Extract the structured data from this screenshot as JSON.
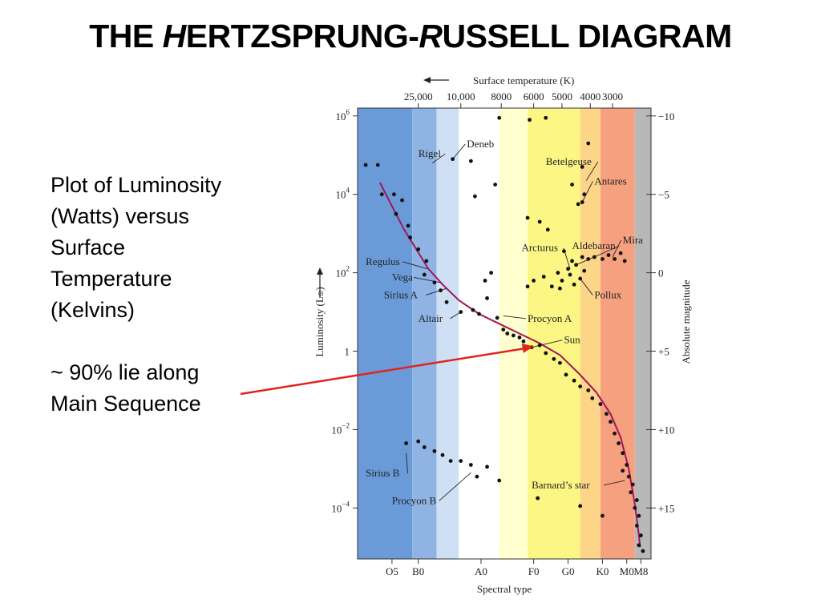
{
  "slide": {
    "title_parts": [
      "THE ",
      "H",
      "ERTZSPRUNG-",
      "R",
      "USSELL DIAGRAM"
    ],
    "description_lines": [
      "Plot of Luminosity",
      "(Watts) versus",
      "Surface",
      "Temperature",
      "(Kelvins)"
    ],
    "note_lines": [
      "~ 90% lie along",
      "Main Sequence"
    ]
  },
  "chart_data": {
    "type": "scatter",
    "xlabel": "Spectral type",
    "top_xlabel": "Surface temperature (K)",
    "ylabel": "Luminosity (L",
    "ylabel_symbol": "⊙",
    "ylabel_close": ")",
    "right_ylabel": "Absolute magnitude",
    "y_scale": "log",
    "ylim_log10": [
      -5.3,
      6.2
    ],
    "xlim_index": [
      0,
      7.25
    ],
    "spectral_ticks": [
      {
        "label": "O5",
        "pos": 0.85
      },
      {
        "label": "B0",
        "pos": 1.5
      },
      {
        "label": "A0",
        "pos": 3.05
      },
      {
        "label": "F0",
        "pos": 4.35
      },
      {
        "label": "G0",
        "pos": 5.2
      },
      {
        "label": "K0",
        "pos": 6.05
      },
      {
        "label": "M0",
        "pos": 6.65
      },
      {
        "label": "M8",
        "pos": 7.0
      }
    ],
    "temperature_ticks": [
      {
        "label": "25,000",
        "pos": 1.5
      },
      {
        "label": "10,000",
        "pos": 2.55
      },
      {
        "label": "8000",
        "pos": 3.55
      },
      {
        "label": "6000",
        "pos": 4.35
      },
      {
        "label": "5000",
        "pos": 5.05
      },
      {
        "label": "4000",
        "pos": 5.75
      },
      {
        "label": "3000",
        "pos": 6.3
      }
    ],
    "luminosity_ticks": [
      {
        "value": 6,
        "base": "10",
        "exp": "6"
      },
      {
        "value": 4,
        "base": "10",
        "exp": "4"
      },
      {
        "value": 2,
        "base": "10",
        "exp": "2"
      },
      {
        "value": 0,
        "base": "1",
        "exp": ""
      },
      {
        "value": -2,
        "base": "10",
        "exp": "−2"
      },
      {
        "value": -4,
        "base": "10",
        "exp": "−4"
      }
    ],
    "magnitude_ticks": [
      {
        "value": 6,
        "label": "−10"
      },
      {
        "value": 4,
        "label": "−5"
      },
      {
        "value": 2,
        "label": "0"
      },
      {
        "value": 0,
        "label": "+5"
      },
      {
        "value": -2,
        "label": "+10"
      },
      {
        "value": -4,
        "label": "+15"
      }
    ],
    "color_bands": [
      {
        "from": 0,
        "to": 1.35,
        "color": "#6a9bd8"
      },
      {
        "from": 1.35,
        "to": 1.95,
        "color": "#8fb4e4"
      },
      {
        "from": 1.95,
        "to": 2.5,
        "color": "#cfe0f5"
      },
      {
        "from": 2.5,
        "to": 3.5,
        "color": "#ffffff"
      },
      {
        "from": 3.5,
        "to": 4.2,
        "color": "#ffffd0"
      },
      {
        "from": 4.2,
        "to": 5.5,
        "color": "#fcf784"
      },
      {
        "from": 5.5,
        "to": 6.0,
        "color": "#fcd588"
      },
      {
        "from": 6.0,
        "to": 6.85,
        "color": "#f5a07e"
      },
      {
        "from": 6.85,
        "to": 7.25,
        "color": "#b8b8b8"
      }
    ],
    "main_sequence_curve": [
      {
        "x": 0.55,
        "y": 4.3
      },
      {
        "x": 0.85,
        "y": 3.7
      },
      {
        "x": 1.15,
        "y": 3.1
      },
      {
        "x": 1.45,
        "y": 2.6
      },
      {
        "x": 1.75,
        "y": 2.1
      },
      {
        "x": 2.1,
        "y": 1.7
      },
      {
        "x": 2.5,
        "y": 1.3
      },
      {
        "x": 3.0,
        "y": 0.95
      },
      {
        "x": 3.5,
        "y": 0.7
      },
      {
        "x": 4.0,
        "y": 0.45
      },
      {
        "x": 4.5,
        "y": 0.2
      },
      {
        "x": 5.0,
        "y": -0.1
      },
      {
        "x": 5.45,
        "y": -0.55
      },
      {
        "x": 5.9,
        "y": -1.05
      },
      {
        "x": 6.25,
        "y": -1.6
      },
      {
        "x": 6.5,
        "y": -2.2
      },
      {
        "x": 6.7,
        "y": -3.0
      },
      {
        "x": 6.85,
        "y": -3.9
      },
      {
        "x": 6.95,
        "y": -4.7
      },
      {
        "x": 6.98,
        "y": -5.0
      }
    ],
    "points": [
      {
        "x": 0.2,
        "y": 4.75
      },
      {
        "x": 0.5,
        "y": 4.75
      },
      {
        "x": 0.6,
        "y": 4.0
      },
      {
        "x": 0.9,
        "y": 4.0
      },
      {
        "x": 1.1,
        "y": 3.85
      },
      {
        "x": 0.95,
        "y": 3.5
      },
      {
        "x": 1.25,
        "y": 3.2
      },
      {
        "x": 1.3,
        "y": 2.9
      },
      {
        "x": 1.5,
        "y": 2.6
      },
      {
        "x": 1.7,
        "y": 2.3
      },
      {
        "x": 1.65,
        "y": 1.95
      },
      {
        "x": 1.9,
        "y": 1.75
      },
      {
        "x": 2.05,
        "y": 1.55
      },
      {
        "x": 2.2,
        "y": 1.25
      },
      {
        "x": 2.55,
        "y": 1.0
      },
      {
        "x": 2.85,
        "y": 1.05
      },
      {
        "x": 3.0,
        "y": 0.95
      },
      {
        "x": 3.2,
        "y": 1.35
      },
      {
        "x": 3.15,
        "y": 1.8
      },
      {
        "x": 3.3,
        "y": 2.0
      },
      {
        "x": 3.45,
        "y": 0.85
      },
      {
        "x": 3.6,
        "y": 0.55
      },
      {
        "x": 3.7,
        "y": 0.45
      },
      {
        "x": 3.85,
        "y": 0.4
      },
      {
        "x": 4.0,
        "y": 0.35
      },
      {
        "x": 4.1,
        "y": 0.25
      },
      {
        "x": 4.3,
        "y": 0.1
      },
      {
        "x": 4.5,
        "y": 0.15
      },
      {
        "x": 4.65,
        "y": -0.05
      },
      {
        "x": 4.85,
        "y": -0.2
      },
      {
        "x": 5.0,
        "y": -0.3
      },
      {
        "x": 5.15,
        "y": -0.6
      },
      {
        "x": 5.35,
        "y": -0.75
      },
      {
        "x": 5.5,
        "y": -0.9
      },
      {
        "x": 5.7,
        "y": -1.0
      },
      {
        "x": 5.8,
        "y": -1.2
      },
      {
        "x": 6.0,
        "y": -1.35
      },
      {
        "x": 6.15,
        "y": -1.6
      },
      {
        "x": 6.25,
        "y": -1.8
      },
      {
        "x": 6.35,
        "y": -2.1
      },
      {
        "x": 6.45,
        "y": -2.35
      },
      {
        "x": 6.55,
        "y": -2.6
      },
      {
        "x": 6.65,
        "y": -2.9
      },
      {
        "x": 6.55,
        "y": -3.05
      },
      {
        "x": 6.7,
        "y": -3.2
      },
      {
        "x": 6.8,
        "y": -3.4
      },
      {
        "x": 6.75,
        "y": -3.6
      },
      {
        "x": 6.9,
        "y": -3.8
      },
      {
        "x": 6.85,
        "y": -4.0
      },
      {
        "x": 6.95,
        "y": -4.2
      },
      {
        "x": 6.9,
        "y": -4.45
      },
      {
        "x": 7.0,
        "y": -4.7
      },
      {
        "x": 6.95,
        "y": -4.95
      },
      {
        "x": 7.05,
        "y": -5.1
      },
      {
        "x": 3.5,
        "y": 5.95
      },
      {
        "x": 4.25,
        "y": 5.9
      },
      {
        "x": 4.65,
        "y": 5.95
      },
      {
        "x": 5.7,
        "y": 5.3
      },
      {
        "x": 2.35,
        "y": 4.9
      },
      {
        "x": 2.8,
        "y": 4.85
      },
      {
        "x": 2.9,
        "y": 3.95
      },
      {
        "x": 3.4,
        "y": 4.25
      },
      {
        "x": 5.55,
        "y": 4.7
      },
      {
        "x": 5.3,
        "y": 4.25
      },
      {
        "x": 5.45,
        "y": 3.75
      },
      {
        "x": 4.2,
        "y": 3.4
      },
      {
        "x": 4.5,
        "y": 3.3
      },
      {
        "x": 4.7,
        "y": 3.1
      },
      {
        "x": 5.6,
        "y": 4.0
      },
      {
        "x": 5.55,
        "y": 3.8
      },
      {
        "x": 5.1,
        "y": 2.55
      },
      {
        "x": 5.3,
        "y": 2.3
      },
      {
        "x": 5.2,
        "y": 2.1
      },
      {
        "x": 5.4,
        "y": 2.2
      },
      {
        "x": 5.55,
        "y": 2.4
      },
      {
        "x": 5.7,
        "y": 2.35
      },
      {
        "x": 5.85,
        "y": 2.4
      },
      {
        "x": 6.05,
        "y": 2.35
      },
      {
        "x": 6.2,
        "y": 2.45
      },
      {
        "x": 6.35,
        "y": 2.35
      },
      {
        "x": 6.6,
        "y": 2.3
      },
      {
        "x": 6.5,
        "y": 2.5
      },
      {
        "x": 4.35,
        "y": 1.8
      },
      {
        "x": 4.6,
        "y": 1.9
      },
      {
        "x": 4.8,
        "y": 1.65
      },
      {
        "x": 4.95,
        "y": 2.0
      },
      {
        "x": 5.05,
        "y": 1.8
      },
      {
        "x": 5.25,
        "y": 1.95
      },
      {
        "x": 5.35,
        "y": 1.7
      },
      {
        "x": 5.5,
        "y": 1.85
      },
      {
        "x": 5.6,
        "y": 2.05
      },
      {
        "x": 4.2,
        "y": 1.65
      },
      {
        "x": 5.0,
        "y": 1.6
      },
      {
        "x": 1.2,
        "y": -2.35
      },
      {
        "x": 1.5,
        "y": -2.3
      },
      {
        "x": 1.65,
        "y": -2.45
      },
      {
        "x": 1.9,
        "y": -2.55
      },
      {
        "x": 2.1,
        "y": -2.65
      },
      {
        "x": 2.3,
        "y": -2.8
      },
      {
        "x": 2.55,
        "y": -2.8
      },
      {
        "x": 2.8,
        "y": -2.9
      },
      {
        "x": 3.2,
        "y": -2.95
      },
      {
        "x": 2.95,
        "y": -3.2
      },
      {
        "x": 3.5,
        "y": -3.3
      },
      {
        "x": 4.45,
        "y": -3.75
      },
      {
        "x": 5.5,
        "y": -3.95
      },
      {
        "x": 6.05,
        "y": -4.2
      }
    ],
    "annotations": [
      {
        "text": "Deneb",
        "lx": 2.7,
        "ly": 5.2,
        "px": 2.35,
        "py": 4.9,
        "anchor": "start"
      },
      {
        "text": "Rigel",
        "lx": 1.5,
        "ly": 4.95,
        "px": 1.85,
        "py": 4.8,
        "anchor": "start"
      },
      {
        "text": "Betelgeuse",
        "lx": 4.65,
        "ly": 4.75,
        "px": 5.65,
        "py": 4.35,
        "anchor": "start"
      },
      {
        "text": "Antares",
        "lx": 5.85,
        "ly": 4.25,
        "px": 5.55,
        "py": 3.8,
        "anchor": "start"
      },
      {
        "text": "Regulus",
        "lx": 0.2,
        "ly": 2.2,
        "px": 1.72,
        "py": 2.1,
        "anchor": "start"
      },
      {
        "text": "Vega",
        "lx": 0.85,
        "ly": 1.8,
        "px": 2.05,
        "py": 1.75,
        "anchor": "start"
      },
      {
        "text": "Sirius A",
        "lx": 0.65,
        "ly": 1.35,
        "px": 2.2,
        "py": 1.6,
        "anchor": "start"
      },
      {
        "text": "Altair",
        "lx": 1.5,
        "ly": 0.75,
        "px": 2.55,
        "py": 1.0,
        "anchor": "start"
      },
      {
        "text": "Arcturus",
        "lx": 4.05,
        "ly": 2.55,
        "px": 5.25,
        "py": 2.1,
        "anchor": "start"
      },
      {
        "text": "Aldebaran",
        "lx": 5.3,
        "ly": 2.6,
        "px": 5.4,
        "py": 2.2,
        "anchor": "start"
      },
      {
        "text": "Mira",
        "lx": 6.55,
        "ly": 2.75,
        "px": 6.3,
        "py": 2.4,
        "anchor": "start"
      },
      {
        "text": "Pollux",
        "lx": 5.85,
        "ly": 1.35,
        "px": 5.5,
        "py": 1.85,
        "anchor": "start"
      },
      {
        "text": "Procyon A",
        "lx": 4.2,
        "ly": 0.75,
        "px": 3.6,
        "py": 0.9,
        "anchor": "start"
      },
      {
        "text": "Sun",
        "lx": 5.1,
        "ly": 0.2,
        "px": 4.3,
        "py": 0.1,
        "anchor": "start"
      },
      {
        "text": "Sirius B",
        "lx": 0.2,
        "ly": -3.2,
        "px": 1.2,
        "py": -2.6,
        "anchor": "start"
      },
      {
        "text": "Procyon B",
        "lx": 0.85,
        "ly": -3.9,
        "px": 2.8,
        "py": -3.1,
        "anchor": "start"
      },
      {
        "text": "Barnard’s star",
        "lx": 4.3,
        "ly": -3.5,
        "px": 6.6,
        "py": -3.3,
        "anchor": "start"
      }
    ],
    "pointer_arrow": {
      "to_x": 4.35,
      "to_y": 0.12
    }
  }
}
